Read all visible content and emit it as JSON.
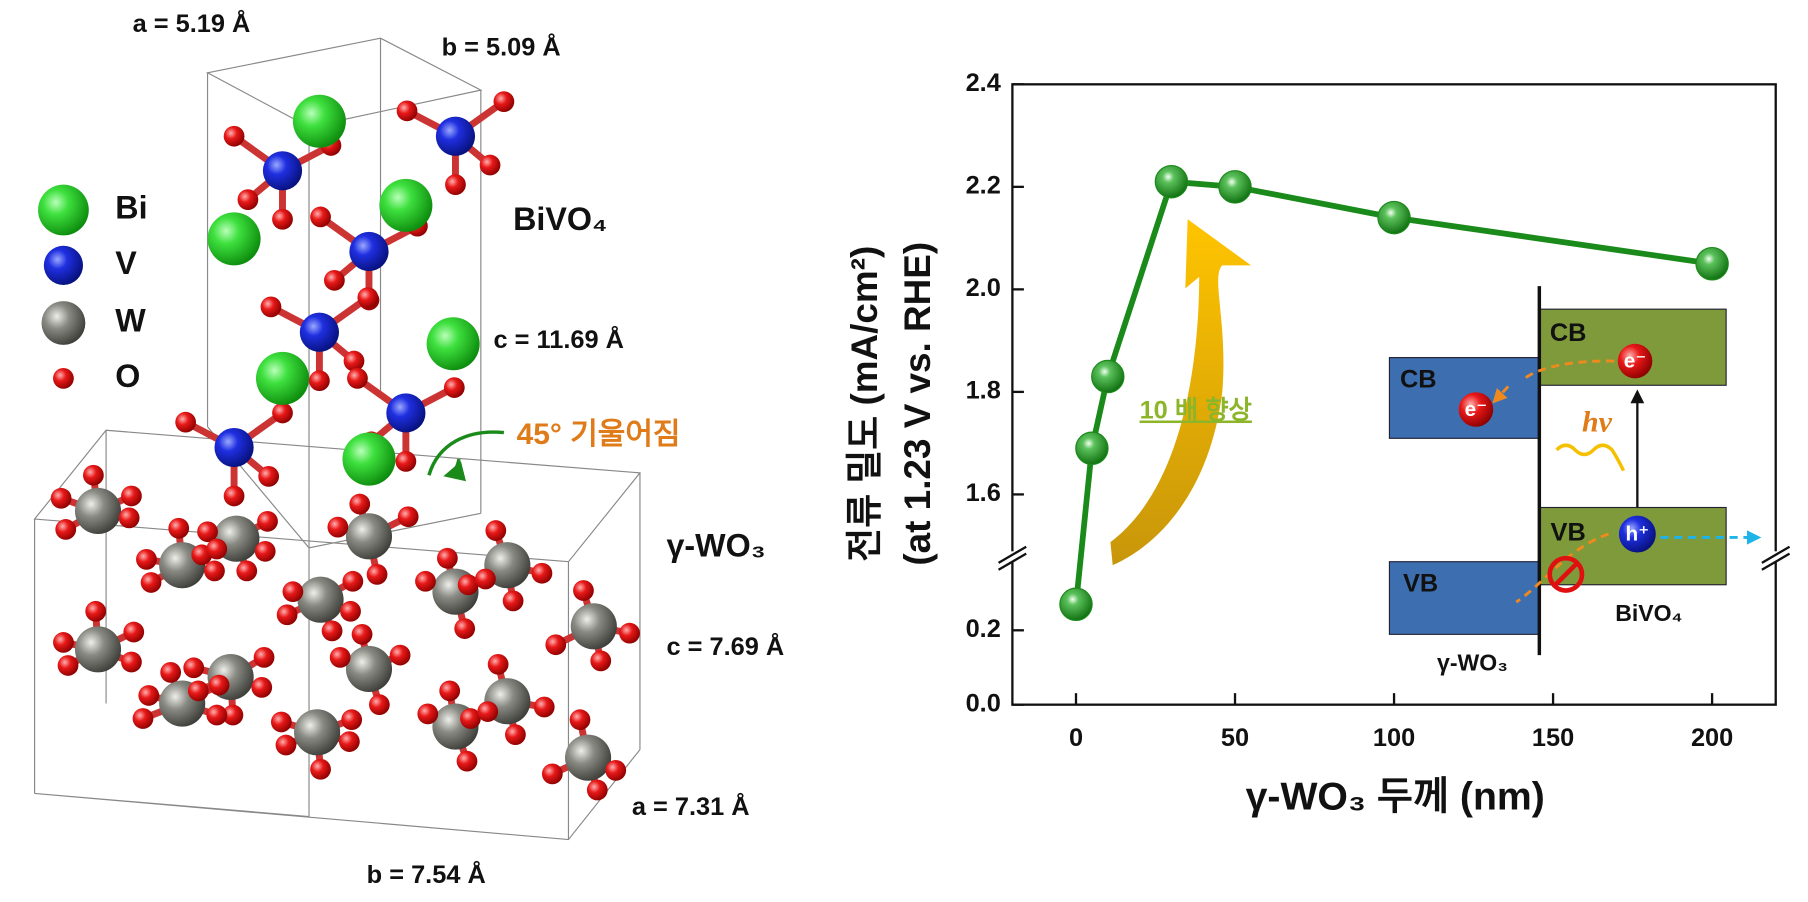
{
  "structure": {
    "legend": [
      "Bi",
      "V",
      "W",
      "O"
    ],
    "phases": [
      "BiVO₄",
      "γ-WO₃"
    ],
    "tilt": "45° 기울어짐",
    "lattice": [
      "a = 5.19 Å",
      "b = 5.09 Å",
      "c = 11.69 Å",
      "c = 7.69 Å",
      "a = 7.31 Å",
      "b = 7.54 Å"
    ]
  },
  "chart_data": {
    "type": "line",
    "xlabel": "γ-WO₃ 두께 (nm)",
    "ylabel": [
      "전류 밀도 (mA/cm²)",
      "(at 1.23 V vs. RHE)"
    ],
    "x": [
      0,
      5,
      10,
      30,
      50,
      100,
      200
    ],
    "series": [
      {
        "color": "#1a8a1a",
        "values": [
          0.27,
          1.69,
          1.83,
          2.21,
          2.2,
          2.14,
          2.05
        ]
      }
    ],
    "xlim": [
      -20,
      220
    ],
    "xticks": [
      0,
      50,
      100,
      150,
      200
    ],
    "ylim": [
      0,
      2.4
    ],
    "y_break": [
      0.4,
      1.48
    ],
    "yticks": [
      {
        "value": 0,
        "label": "0.0"
      },
      0.2,
      1.6,
      1.8,
      {
        "value": 2,
        "label": "2.0"
      },
      2.2,
      2.4
    ],
    "annotation": "10 배 향상",
    "inset": {
      "cb": "CB",
      "vb": "VB",
      "electron": "e⁻",
      "hole": "h⁺",
      "photon": "hν",
      "materials": [
        "γ-WO₃",
        "BiVO₄"
      ]
    }
  }
}
